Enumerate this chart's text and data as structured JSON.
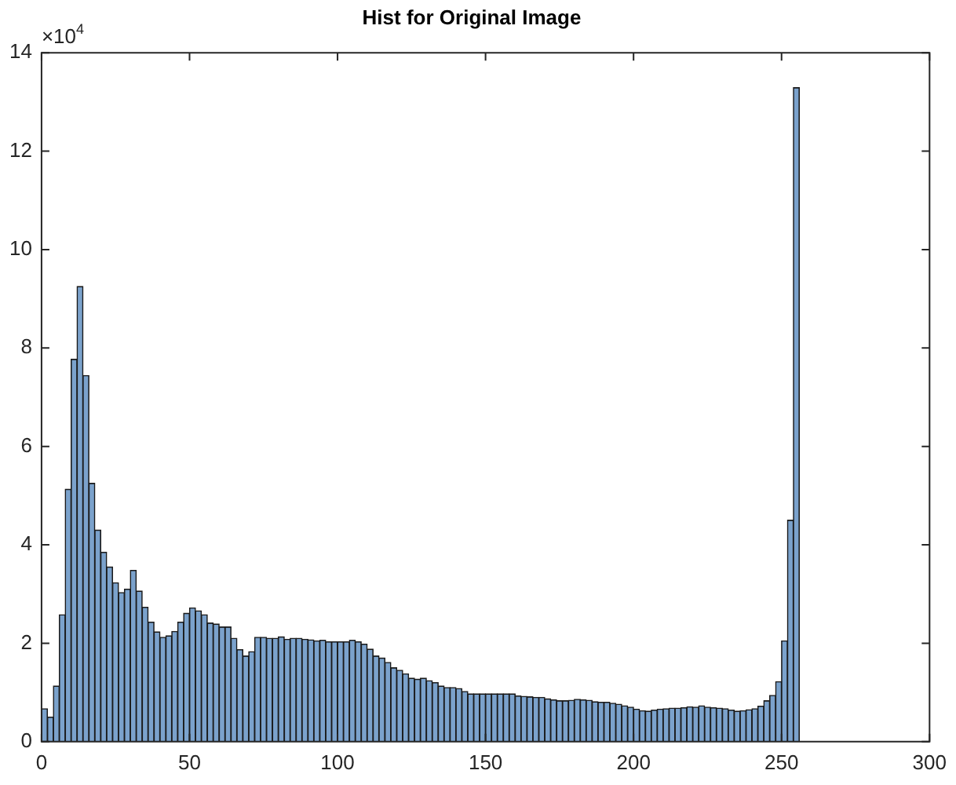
{
  "chart_data": {
    "type": "histogram",
    "title": "Hist for Original Image",
    "color": "#7ba2cc",
    "bins": [
      0,
      2,
      4,
      6,
      8,
      10,
      12,
      14,
      16,
      18,
      20,
      22,
      24,
      26,
      28,
      30,
      32,
      34,
      36,
      38,
      40,
      42,
      44,
      46,
      48,
      50,
      52,
      54,
      56,
      58,
      60,
      62,
      64,
      66,
      68,
      70,
      72,
      74,
      76,
      78,
      80,
      82,
      84,
      86,
      88,
      90,
      92,
      94,
      96,
      98,
      100,
      102,
      104,
      106,
      108,
      110,
      112,
      114,
      116,
      118,
      120,
      122,
      124,
      126,
      128,
      130,
      132,
      134,
      136,
      138,
      140,
      142,
      144,
      146,
      148,
      150,
      152,
      154,
      156,
      158,
      160,
      162,
      164,
      166,
      168,
      170,
      172,
      174,
      176,
      178,
      180,
      182,
      184,
      186,
      188,
      190,
      192,
      194,
      196,
      198,
      200,
      202,
      204,
      206,
      208,
      210,
      212,
      214,
      216,
      218,
      220,
      222,
      224,
      226,
      228,
      230,
      232,
      234,
      236,
      238,
      240,
      242,
      244,
      246,
      248,
      250,
      252,
      254,
      256
    ],
    "values": [
      0.67,
      0.5,
      1.13,
      2.58,
      5.13,
      7.77,
      9.25,
      7.44,
      5.25,
      4.3,
      3.85,
      3.55,
      3.23,
      3.03,
      3.1,
      3.48,
      3.06,
      2.73,
      2.43,
      2.23,
      2.12,
      2.15,
      2.24,
      2.43,
      2.61,
      2.72,
      2.66,
      2.58,
      2.41,
      2.39,
      2.33,
      2.33,
      2.1,
      1.87,
      1.74,
      1.83,
      2.12,
      2.12,
      2.1,
      2.1,
      2.13,
      2.08,
      2.1,
      2.1,
      2.08,
      2.07,
      2.05,
      2.06,
      2.03,
      2.03,
      2.03,
      2.03,
      2.06,
      2.03,
      1.98,
      1.88,
      1.74,
      1.7,
      1.61,
      1.5,
      1.45,
      1.38,
      1.29,
      1.27,
      1.29,
      1.24,
      1.2,
      1.13,
      1.1,
      1.1,
      1.08,
      1.02,
      0.97,
      0.97,
      0.97,
      0.97,
      0.97,
      0.97,
      0.97,
      0.97,
      0.93,
      0.92,
      0.91,
      0.9,
      0.9,
      0.87,
      0.85,
      0.83,
      0.83,
      0.84,
      0.86,
      0.85,
      0.84,
      0.81,
      0.8,
      0.8,
      0.78,
      0.76,
      0.73,
      0.7,
      0.66,
      0.63,
      0.62,
      0.64,
      0.66,
      0.67,
      0.68,
      0.68,
      0.69,
      0.71,
      0.7,
      0.73,
      0.7,
      0.69,
      0.68,
      0.67,
      0.64,
      0.62,
      0.63,
      0.65,
      0.67,
      0.72,
      0.83,
      0.94,
      1.22,
      2.05,
      4.5,
      13.29
    ],
    "xlim": [
      0,
      300
    ],
    "xticks": [
      0,
      50,
      100,
      150,
      200,
      250,
      300
    ],
    "ylim": [
      0,
      14
    ],
    "yticks": [
      0,
      2,
      4,
      6,
      8,
      10,
      12,
      14
    ],
    "annotations": [
      "×10$^{4}$"
    ],
    "grid": false,
    "legend": false
  }
}
